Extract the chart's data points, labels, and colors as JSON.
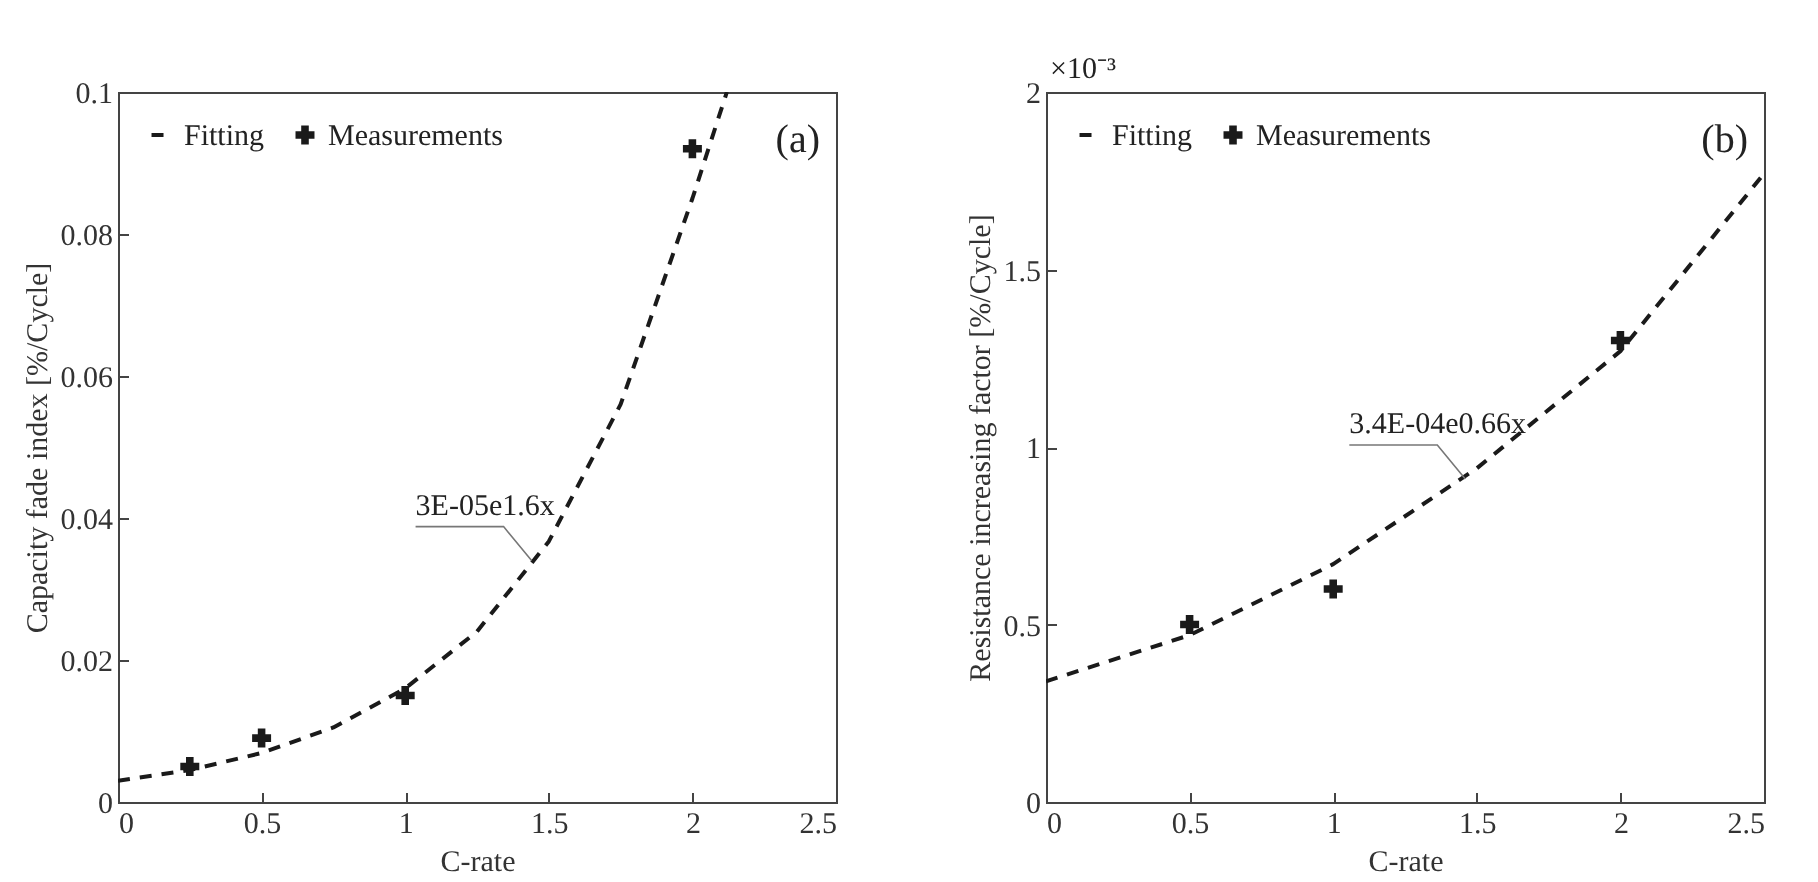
{
  "chart_data": [
    {
      "type": "scatter",
      "xlabel": "C-rate",
      "ylabel": "Capacity fade index [%/Cycle]",
      "xlim": [
        0,
        2.5
      ],
      "xticks": [
        0,
        0.5,
        1,
        1.5,
        2,
        2.5
      ],
      "ylim": [
        0,
        0.1
      ],
      "yticks": [
        0,
        0.02,
        0.04,
        0.06,
        0.08,
        0.1
      ],
      "legend": "top left",
      "grid": false,
      "series": [
        {
          "name": "Measurements",
          "type": "scatter",
          "marker": "cross",
          "color": "#1a1a1a",
          "x": [
            0.25,
            0.5,
            1,
            2
          ],
          "values": [
            0.005,
            0.009,
            0.015,
            0.092
          ]
        },
        {
          "name": "Fitting",
          "type": "line",
          "line_style": "dashed",
          "color": "#1a1a1a",
          "x": [
            0,
            0.25,
            0.5,
            0.75,
            1,
            1.25,
            1.5,
            1.75,
            2,
            2.12
          ],
          "values": [
            0.003,
            0.0045,
            0.0069,
            0.0105,
            0.016,
            0.024,
            0.0367,
            0.056,
            0.085,
            0.1
          ]
        }
      ],
      "annotations": [
        "(a)",
        {
          "text": "3E-05e1.6x",
          "x": 1.44,
          "y": 0.034
        }
      ]
    },
    {
      "type": "scatter",
      "xlabel": "C-rate",
      "ylabel": "Resistance increasing factor [%/Cycle]",
      "xlim": [
        0,
        2.5
      ],
      "xticks": [
        0,
        0.5,
        1,
        1.5,
        2,
        2.5
      ],
      "ylim": [
        0,
        2
      ],
      "yticks": [
        0,
        0.5,
        1,
        1.5,
        2
      ],
      "legend": "top left",
      "grid": false,
      "series": [
        {
          "name": "Measurements",
          "type": "scatter",
          "marker": "cross",
          "color": "#1a1a1a",
          "x": [
            0.5,
            1,
            2
          ],
          "values": [
            0.5,
            0.6,
            1.3
          ]
        },
        {
          "name": "Fitting",
          "type": "line",
          "line_style": "dashed",
          "color": "#1a1a1a",
          "x": [
            0,
            0.5,
            1,
            1.5,
            2,
            2.5
          ],
          "values": [
            0.34,
            0.47,
            0.67,
            0.94,
            1.27,
            1.77
          ]
        }
      ],
      "annotations": [
        "(b)",
        "×10⁻³",
        {
          "text": "3.4E-04e0.66x",
          "x": 1.46,
          "y": 0.91
        }
      ]
    }
  ]
}
